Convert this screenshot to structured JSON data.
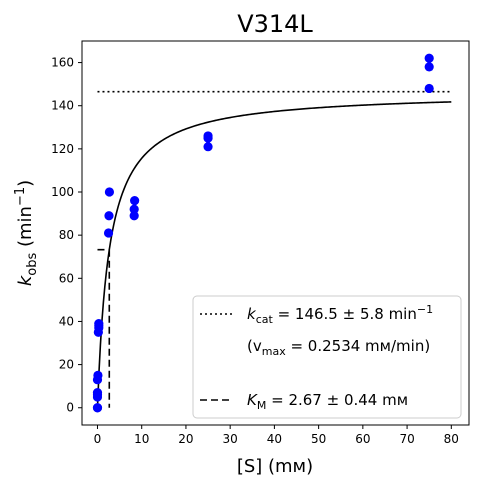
{
  "chart_data": {
    "type": "scatter",
    "title": "V314L",
    "xlabel": "[S] (mм)",
    "ylabel_main": "k",
    "ylabel_sub": "obs",
    "ylabel_unit_open": " (min",
    "ylabel_unit_sup": "−1",
    "ylabel_unit_close": ")",
    "xlim": [
      -3.5,
      84
    ],
    "ylim": [
      -8,
      170
    ],
    "xticks": [
      0,
      10,
      20,
      30,
      40,
      50,
      60,
      70,
      80
    ],
    "yticks": [
      0,
      20,
      40,
      60,
      80,
      100,
      120,
      140,
      160
    ],
    "grid": false,
    "legend_position": "lower right",
    "points": {
      "color": "#0000ff",
      "x": [
        0,
        0,
        0,
        0,
        0,
        0,
        0.1,
        0.2,
        0.3,
        0.3,
        0.3,
        2.5,
        2.6,
        2.7,
        8.3,
        8.3,
        8.4,
        25,
        25,
        25,
        75,
        75,
        75
      ],
      "y": [
        0,
        0,
        5,
        6,
        7,
        13,
        15,
        35,
        37,
        38,
        39,
        81,
        89,
        100,
        89,
        92,
        96,
        121,
        125,
        126,
        148,
        158,
        162
      ]
    },
    "fit": {
      "model": "Michaelis-Menten",
      "kcat": 146.5,
      "KM": 2.67,
      "x_range": [
        0,
        80
      ]
    },
    "kcat_line": {
      "y": 146.5,
      "x_range": [
        0,
        80
      ],
      "style": "dotted"
    },
    "km_marker": {
      "x": 2.67,
      "y_half": 73.25,
      "style": "dashed"
    },
    "legend": {
      "kcat_prefix": "k",
      "kcat_sub": "cat",
      "kcat_text": " = 146.5 ± 5.8 min",
      "kcat_sup": "−1",
      "vmax_open": "(v",
      "vmax_sub": "max",
      "vmax_text": " = 0.2534 mм/min)",
      "km_prefix": "K",
      "km_sub": "M",
      "km_text": " = 2.67 ± 0.44 mм"
    }
  }
}
